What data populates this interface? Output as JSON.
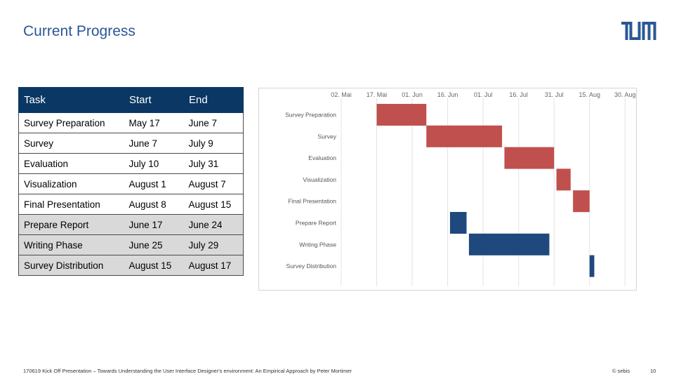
{
  "slide": {
    "title": "Current Progress",
    "footer": "170619 Kick Off Presentation – Towards Understanding the User Interface Designer's environment: An Empirical Approach by  Peter Mortimer",
    "copyright": "© sebis",
    "page_number": "10"
  },
  "table": {
    "headers": [
      "Task",
      "Start",
      "End"
    ],
    "rows": [
      [
        "Survey Preparation",
        "May 17",
        "June 7"
      ],
      [
        "Survey",
        "June 7",
        "July 9"
      ],
      [
        "Evaluation",
        "July 10",
        "July 31"
      ],
      [
        "Visualization",
        "August 1",
        "August 7"
      ],
      [
        "Final Presentation",
        "August 8",
        "August 15"
      ],
      [
        "Prepare Report",
        "June 17",
        "June 24"
      ],
      [
        "Writing Phase",
        "June 25",
        "July 29"
      ],
      [
        "Survey Distribution",
        "August 15",
        "August 17"
      ]
    ]
  },
  "colors": {
    "done": "#c0504d",
    "planned": "#1f497d",
    "header": "#0a3763",
    "title": "#2a5796"
  },
  "chart_data": {
    "type": "gantt",
    "x_ticks": [
      "02. Mai",
      "17. Mai",
      "01. Jun",
      "16. Jun",
      "01. Jul",
      "16. Jul",
      "31. Jul",
      "15. Aug",
      "30. Aug"
    ],
    "x_tick_days": [
      0,
      15,
      30,
      45,
      60,
      75,
      90,
      105,
      120
    ],
    "xlim_days": [
      0,
      122
    ],
    "tasks": [
      {
        "label": "Survey Preparation",
        "start_day": 15,
        "end_day": 36,
        "group": "done"
      },
      {
        "label": "Survey",
        "start_day": 36,
        "end_day": 68,
        "group": "done"
      },
      {
        "label": "Evaluation",
        "start_day": 69,
        "end_day": 90,
        "group": "done"
      },
      {
        "label": "Visualization",
        "start_day": 91,
        "end_day": 97,
        "group": "done"
      },
      {
        "label": "Final Presentation",
        "start_day": 98,
        "end_day": 105,
        "group": "done"
      },
      {
        "label": "Prepare Report",
        "start_day": 46,
        "end_day": 53,
        "group": "planned"
      },
      {
        "label": "Writing Phase",
        "start_day": 54,
        "end_day": 88,
        "group": "planned"
      },
      {
        "label": "Survey Distribution",
        "start_day": 105,
        "end_day": 107,
        "group": "planned"
      }
    ]
  }
}
